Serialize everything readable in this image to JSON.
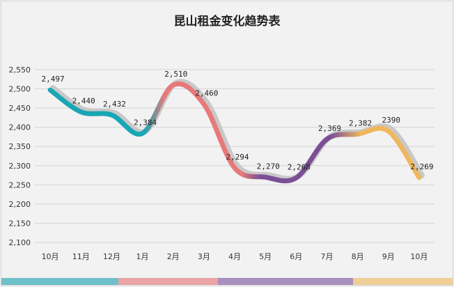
{
  "chart_data": {
    "type": "line",
    "title": "昆山租金变化趋势表",
    "xlabel": "",
    "ylabel": "",
    "categories": [
      "10月",
      "11月",
      "12月",
      "1月",
      "2月",
      "3月",
      "4月",
      "5月",
      "6月",
      "7月",
      "8月",
      "9月",
      "10月"
    ],
    "values": [
      2497,
      2440,
      2432,
      2384,
      2510,
      2460,
      2294,
      2270,
      2268,
      2369,
      2382,
      2390,
      2269
    ],
    "data_labels": [
      "2,497",
      "2,440",
      "2,432",
      "2,384",
      "2,510",
      "2,460",
      "2,294",
      "2,270",
      "2,268",
      "2,369",
      "2,382",
      "2390",
      "2,269"
    ],
    "yticks": [
      "2,100",
      "2,150",
      "2,200",
      "2,250",
      "2,300",
      "2,350",
      "2,400",
      "2,450",
      "2,500",
      "2,550"
    ],
    "ylim": [
      2100,
      2550
    ],
    "grid": true,
    "legend": "none",
    "segment_colors": [
      "#19a6b5",
      "#e8797a",
      "#7b4f96",
      "#f0b75c"
    ],
    "shadow_color": "#c8c8c8"
  }
}
